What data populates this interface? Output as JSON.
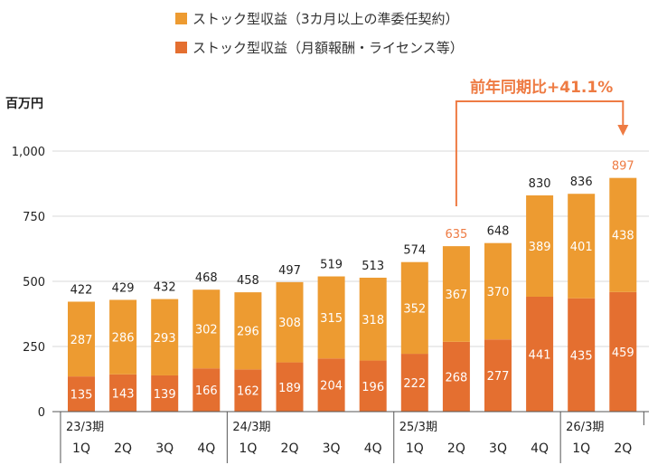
{
  "legend": {
    "upper_label": "ストック型収益（3カ月以上の準委任契約）",
    "lower_label": "ストック型収益（月額報酬・ライセンス等）"
  },
  "y_unit": "百万円",
  "callout": "前年同期比+41.1%",
  "colors": {
    "upper": "#ED9B31",
    "lower": "#E46F30",
    "highlight_total": "#EE7B43",
    "callout": "#EE7B43"
  },
  "chart_data": {
    "type": "bar",
    "stacked": true,
    "categories": [
      "1Q",
      "2Q",
      "3Q",
      "4Q",
      "1Q",
      "2Q",
      "3Q",
      "4Q",
      "1Q",
      "2Q",
      "3Q",
      "4Q",
      "1Q",
      "2Q"
    ],
    "periods": [
      {
        "label": "23/3期",
        "start": 0,
        "count": 4
      },
      {
        "label": "24/3期",
        "start": 4,
        "count": 4
      },
      {
        "label": "25/3期",
        "start": 8,
        "count": 4
      },
      {
        "label": "26/3期",
        "start": 12,
        "count": 2
      }
    ],
    "series": [
      {
        "name": "ストック型収益（月額報酬・ライセンス等）",
        "values": [
          135,
          143,
          139,
          166,
          162,
          189,
          204,
          196,
          222,
          268,
          277,
          441,
          435,
          459
        ]
      },
      {
        "name": "ストック型収益（3カ月以上の準委任契約）",
        "values": [
          287,
          286,
          293,
          302,
          296,
          308,
          315,
          318,
          352,
          367,
          370,
          389,
          401,
          438
        ]
      }
    ],
    "totals": [
      422,
      429,
      432,
      468,
      458,
      497,
      519,
      513,
      574,
      635,
      648,
      830,
      836,
      897
    ],
    "highlight_indices": [
      9,
      13
    ],
    "ylim": [
      0,
      1000
    ],
    "yticks": [
      "0",
      "250",
      "500",
      "750",
      "1,000"
    ],
    "ytick_values": [
      0,
      250,
      500,
      750,
      1000
    ],
    "grid": true
  }
}
